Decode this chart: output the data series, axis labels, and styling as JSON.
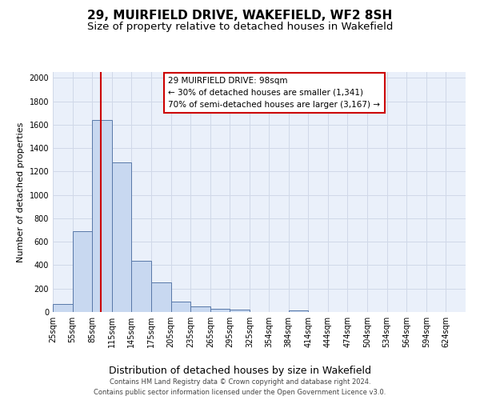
{
  "title": "29, MUIRFIELD DRIVE, WAKEFIELD, WF2 8SH",
  "subtitle": "Size of property relative to detached houses in Wakefield",
  "xlabel": "Distribution of detached houses by size in Wakefield",
  "ylabel": "Number of detached properties",
  "footer_line1": "Contains HM Land Registry data © Crown copyright and database right 2024.",
  "footer_line2": "Contains public sector information licensed under the Open Government Licence v3.0.",
  "bin_labels": [
    "25sqm",
    "55sqm",
    "85sqm",
    "115sqm",
    "145sqm",
    "175sqm",
    "205sqm",
    "235sqm",
    "265sqm",
    "295sqm",
    "325sqm",
    "354sqm",
    "384sqm",
    "414sqm",
    "444sqm",
    "474sqm",
    "504sqm",
    "534sqm",
    "564sqm",
    "594sqm",
    "624sqm"
  ],
  "bin_edges": [
    25,
    55,
    85,
    115,
    145,
    175,
    205,
    235,
    265,
    295,
    325,
    354,
    384,
    414,
    444,
    474,
    504,
    534,
    564,
    594,
    624
  ],
  "bar_heights": [
    65,
    690,
    1640,
    1280,
    435,
    255,
    90,
    50,
    30,
    20,
    0,
    0,
    15,
    0,
    0,
    0,
    0,
    0,
    0,
    0
  ],
  "bar_color": "#c8d8f0",
  "bar_edge_color": "#5878a8",
  "property_value": 98,
  "property_label": "29 MUIRFIELD DRIVE: 98sqm",
  "annotation_line1": "← 30% of detached houses are smaller (1,341)",
  "annotation_line2": "70% of semi-detached houses are larger (3,167) →",
  "annotation_box_color": "#ffffff",
  "annotation_box_edge": "#cc0000",
  "red_line_color": "#cc0000",
  "ylim": [
    0,
    2050
  ],
  "yticks": [
    0,
    200,
    400,
    600,
    800,
    1000,
    1200,
    1400,
    1600,
    1800,
    2000
  ],
  "background_color": "#ffffff",
  "grid_color": "#d0d8e8",
  "title_fontsize": 11,
  "subtitle_fontsize": 9.5,
  "xlabel_fontsize": 9,
  "ylabel_fontsize": 8,
  "tick_fontsize": 7,
  "annotation_fontsize": 7.5,
  "footer_fontsize": 6,
  "ax_bg_color": "#eaf0fa"
}
